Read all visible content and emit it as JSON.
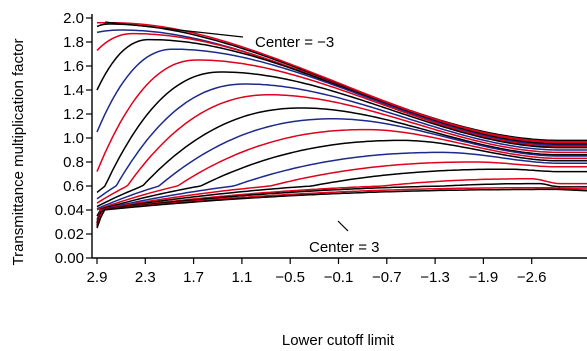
{
  "chart_data": {
    "type": "line",
    "title": "",
    "xlabel": "Lower cutoff limit",
    "ylabel": "Transmittance multiplication factor",
    "x_ticks": [
      "2.9",
      "2.3",
      "1.7",
      "1.1",
      "−0.5",
      "−0.1",
      "−0.7",
      "−1.3",
      "−1.9",
      "−2.6"
    ],
    "y_ticks": [
      "0.00",
      "0.02",
      "0.04",
      "0.6",
      "0.8",
      "1.0",
      "1.2",
      "1.4",
      "1.6",
      "1.8",
      "2.0"
    ],
    "grid": false,
    "legend": "none",
    "colors": {
      "black": "#000000",
      "red": "#e0001b",
      "blue": "#1c2a8c"
    },
    "annotations": [
      {
        "text": "Center = −3",
        "points_to": "top curve"
      },
      {
        "text": "Center = 3",
        "points_to": "bottom curve"
      }
    ],
    "series": [
      {
        "color": "black",
        "peak_x": 2.75,
        "peak_y": 1.95,
        "start_y": 1.93,
        "end_y": 0.98
      },
      {
        "color": "red",
        "peak_x": 2.7,
        "peak_y": 1.96,
        "start_y": 1.96,
        "end_y": 0.97
      },
      {
        "color": "blue",
        "peak_x": 2.6,
        "peak_y": 1.9,
        "start_y": 1.88,
        "end_y": 0.96
      },
      {
        "color": "red",
        "peak_x": 2.45,
        "peak_y": 1.87,
        "start_y": 1.73,
        "end_y": 0.96
      },
      {
        "color": "black",
        "peak_x": 2.25,
        "peak_y": 1.82,
        "start_y": 1.4,
        "end_y": 0.95
      },
      {
        "color": "blue",
        "peak_x": 1.95,
        "peak_y": 1.74,
        "start_y": 1.05,
        "end_y": 0.94
      },
      {
        "color": "red",
        "peak_x": 1.65,
        "peak_y": 1.65,
        "start_y": 0.72,
        "end_y": 0.93
      },
      {
        "color": "black",
        "peak_x": 1.35,
        "peak_y": 1.55,
        "start_y": 0.45,
        "end_y": 0.92
      },
      {
        "color": "blue",
        "peak_x": 1.05,
        "peak_y": 1.45,
        "start_y": 0.3,
        "end_y": 0.9
      },
      {
        "color": "red",
        "peak_x": 0.75,
        "peak_y": 1.36,
        "start_y": 0.2,
        "end_y": 0.88
      },
      {
        "color": "black",
        "peak_x": 0.35,
        "peak_y": 1.25,
        "start_y": 0.12,
        "end_y": 0.86
      },
      {
        "color": "blue",
        "peak_x": -0.05,
        "peak_y": 1.16,
        "start_y": 0.07,
        "end_y": 0.85
      },
      {
        "color": "red",
        "peak_x": -0.45,
        "peak_y": 1.07,
        "start_y": 0.045,
        "end_y": 0.83
      },
      {
        "color": "black",
        "peak_x": -0.9,
        "peak_y": 0.98,
        "start_y": 0.035,
        "end_y": 0.81
      },
      {
        "color": "blue",
        "peak_x": -1.4,
        "peak_y": 0.88,
        "start_y": 0.032,
        "end_y": 0.79
      },
      {
        "color": "red",
        "peak_x": -1.8,
        "peak_y": 0.8,
        "start_y": 0.03,
        "end_y": 0.76
      },
      {
        "color": "black",
        "peak_x": -2.2,
        "peak_y": 0.74,
        "start_y": 0.029,
        "end_y": 0.72
      },
      {
        "color": "red",
        "peak_x": -2.5,
        "peak_y": 0.66,
        "start_y": 0.028,
        "end_y": 0.62
      },
      {
        "color": "black",
        "peak_x": -2.6,
        "peak_y": 0.62,
        "start_y": 0.027,
        "end_y": 0.58
      },
      {
        "color": "red",
        "peak_x": -2.7,
        "peak_y": 0.56,
        "start_y": 0.026,
        "end_y": 0.53
      },
      {
        "color": "black",
        "peak_x": -2.8,
        "peak_y": 0.52,
        "start_y": 0.025,
        "end_y": 0.49
      }
    ]
  }
}
